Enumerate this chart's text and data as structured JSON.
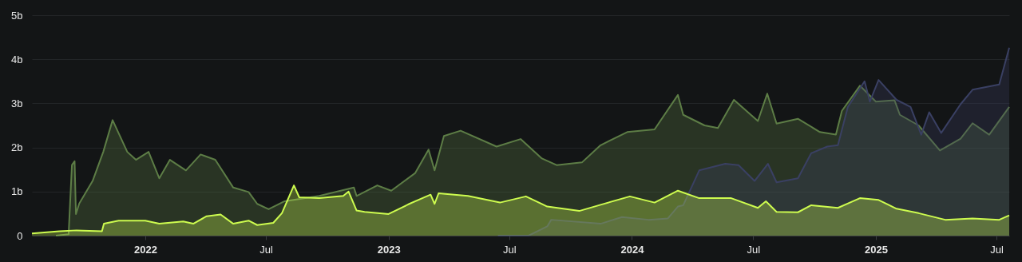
{
  "chart_data": {
    "type": "area",
    "xlim": [
      "2021-07-15",
      "2025-07-20"
    ],
    "xticks": [
      {
        "value": "2022-01-01",
        "label": "2022"
      },
      {
        "value": "2022-07-01",
        "label": "Jul"
      },
      {
        "value": "2023-01-01",
        "label": "2023"
      },
      {
        "value": "2023-07-01",
        "label": "Jul"
      },
      {
        "value": "2024-01-01",
        "label": "2024"
      },
      {
        "value": "2024-07-01",
        "label": "Jul"
      },
      {
        "value": "2025-01-01",
        "label": "2025"
      },
      {
        "value": "2025-07-01",
        "label": "Jul"
      }
    ],
    "ylim": [
      0,
      5
    ],
    "yticks": [
      0,
      {
        "value": 1,
        "label": "1b"
      },
      {
        "value": 2,
        "label": "2b"
      },
      {
        "value": 3,
        "label": "3b"
      },
      {
        "value": 4,
        "label": "4b"
      },
      {
        "value": 5,
        "label": "5b"
      }
    ],
    "grid": "y",
    "series": [
      {
        "color": "#5d7d46",
        "x": [
          "2021-08-20",
          "2021-09-08",
          "2021-09-13",
          "2021-09-17",
          "2021-09-19",
          "2021-09-24",
          "2021-10-14",
          "2021-10-30",
          "2021-11-13",
          "2021-12-05",
          "2021-12-18",
          "2022-01-06",
          "2022-01-22",
          "2022-02-07",
          "2022-03-03",
          "2022-03-25",
          "2022-04-16",
          "2022-05-13",
          "2022-06-05",
          "2022-06-18",
          "2022-07-05",
          "2022-07-29",
          "2022-09-19",
          "2022-11-10",
          "2022-11-14",
          "2022-12-15",
          "2023-01-05",
          "2023-02-10",
          "2023-03-02",
          "2023-03-11",
          "2023-03-25",
          "2023-04-19",
          "2023-06-12",
          "2023-07-18",
          "2023-08-19",
          "2023-09-10",
          "2023-10-18",
          "2023-11-15",
          "2023-12-25",
          "2024-02-04",
          "2024-03-10",
          "2024-03-18",
          "2024-04-19",
          "2024-05-09",
          "2024-06-02",
          "2024-07-08",
          "2024-07-22",
          "2024-08-05",
          "2024-09-06",
          "2024-10-09",
          "2024-11-02",
          "2024-11-11",
          "2024-12-08",
          "2025-01-01",
          "2025-01-29",
          "2025-02-06",
          "2025-03-06",
          "2025-04-07",
          "2025-05-08",
          "2025-05-26",
          "2025-06-20",
          "2025-07-20"
        ],
        "values": [
          0,
          0.03,
          1.6,
          1.69,
          0.49,
          0.73,
          1.24,
          1.9,
          2.62,
          1.9,
          1.72,
          1.9,
          1.3,
          1.72,
          1.48,
          1.84,
          1.72,
          1.09,
          0.99,
          0.72,
          0.6,
          0.78,
          0.9,
          1.09,
          0.9,
          1.14,
          1.02,
          1.42,
          1.95,
          1.48,
          2.26,
          2.38,
          2.02,
          2.19,
          1.75,
          1.6,
          1.66,
          2.05,
          2.35,
          2.41,
          3.19,
          2.74,
          2.5,
          2.44,
          3.08,
          2.6,
          3.22,
          2.54,
          2.65,
          2.35,
          2.29,
          2.83,
          3.4,
          3.04,
          3.07,
          2.74,
          2.5,
          1.93,
          2.2,
          2.55,
          2.29,
          2.92
        ]
      },
      {
        "color": "#3a4063",
        "x": [
          "2023-06-14",
          "2023-07-30",
          "2023-08-27",
          "2023-09-02",
          "2023-11-15",
          "2023-12-17",
          "2024-01-26",
          "2024-02-24",
          "2024-03-10",
          "2024-03-18",
          "2024-04-11",
          "2024-05-20",
          "2024-06-09",
          "2024-07-03",
          "2024-07-23",
          "2024-08-05",
          "2024-09-06",
          "2024-09-26",
          "2024-10-20",
          "2024-11-05",
          "2024-11-20",
          "2024-12-15",
          "2024-12-23",
          "2025-01-05",
          "2025-02-01",
          "2025-02-22",
          "2025-03-10",
          "2025-03-22",
          "2025-04-09",
          "2025-05-08",
          "2025-05-26",
          "2025-07-05",
          "2025-07-20"
        ],
        "values": [
          0,
          0,
          0.21,
          0.36,
          0.27,
          0.42,
          0.36,
          0.39,
          0.66,
          0.69,
          1.48,
          1.63,
          1.6,
          1.24,
          1.63,
          1.21,
          1.3,
          1.87,
          2.02,
          2.05,
          2.92,
          3.5,
          3.04,
          3.53,
          3.08,
          2.92,
          2.29,
          2.8,
          2.33,
          2.98,
          3.31,
          3.43,
          4.26
        ]
      },
      {
        "color": "#cdfb4f",
        "x": [
          "2021-07-15",
          "2021-08-25",
          "2021-09-20",
          "2021-10-28",
          "2021-10-31",
          "2021-11-22",
          "2022-01-01",
          "2022-01-22",
          "2022-02-27",
          "2022-03-14",
          "2022-04-03",
          "2022-04-24",
          "2022-05-13",
          "2022-06-05",
          "2022-06-18",
          "2022-07-12",
          "2022-07-25",
          "2022-08-12",
          "2022-08-20",
          "2022-09-19",
          "2022-10-25",
          "2022-11-02",
          "2022-11-14",
          "2022-11-26",
          "2023-01-01",
          "2023-02-01",
          "2023-03-05",
          "2023-03-11",
          "2023-03-17",
          "2023-04-30",
          "2023-06-17",
          "2023-07-26",
          "2023-08-27",
          "2023-10-14",
          "2023-11-15",
          "2023-12-29",
          "2024-02-04",
          "2024-03-10",
          "2024-04-11",
          "2024-05-29",
          "2024-07-08",
          "2024-07-20",
          "2024-08-05",
          "2024-09-06",
          "2024-09-26",
          "2024-11-05",
          "2024-12-08",
          "2025-01-05",
          "2025-02-01",
          "2025-03-06",
          "2025-04-15",
          "2025-05-26",
          "2025-07-05",
          "2025-07-20"
        ],
        "values": [
          0.05,
          0.1,
          0.12,
          0.1,
          0.27,
          0.34,
          0.34,
          0.27,
          0.32,
          0.27,
          0.44,
          0.48,
          0.27,
          0.34,
          0.24,
          0.29,
          0.51,
          1.14,
          0.87,
          0.85,
          0.9,
          1.0,
          0.57,
          0.54,
          0.49,
          0.72,
          0.93,
          0.72,
          0.96,
          0.9,
          0.75,
          0.89,
          0.66,
          0.56,
          0.7,
          0.89,
          0.75,
          1.02,
          0.85,
          0.85,
          0.63,
          0.78,
          0.54,
          0.53,
          0.69,
          0.63,
          0.85,
          0.81,
          0.61,
          0.51,
          0.36,
          0.39,
          0.36,
          0.46
        ]
      }
    ]
  }
}
